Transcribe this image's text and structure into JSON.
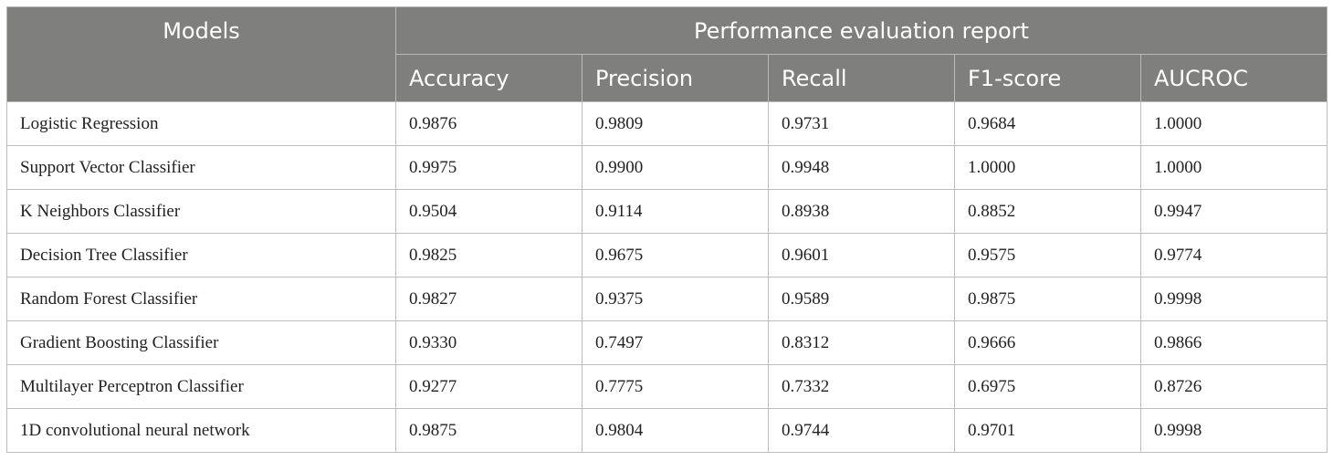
{
  "table": {
    "model_header": "Models",
    "group_header": "Performance evaluation report",
    "metrics": [
      "Accuracy",
      "Precision",
      "Recall",
      "F1-score",
      "AUCROC"
    ],
    "rows": [
      {
        "model": "Logistic Regression",
        "values": [
          "0.9876",
          "0.9809",
          "0.9731",
          "0.9684",
          "1.0000"
        ]
      },
      {
        "model": "Support Vector Classifier",
        "values": [
          "0.9975",
          "0.9900",
          "0.9948",
          "1.0000",
          "1.0000"
        ]
      },
      {
        "model": "K Neighbors Classifier",
        "values": [
          "0.9504",
          "0.9114",
          "0.8938",
          "0.8852",
          "0.9947"
        ]
      },
      {
        "model": "Decision Tree Classifier",
        "values": [
          "0.9825",
          "0.9675",
          "0.9601",
          "0.9575",
          "0.9774"
        ]
      },
      {
        "model": "Random Forest Classifier",
        "values": [
          "0.9827",
          "0.9375",
          "0.9589",
          "0.9875",
          "0.9998"
        ]
      },
      {
        "model": "Gradient Boosting Classifier",
        "values": [
          "0.9330",
          "0.7497",
          "0.8312",
          "0.9666",
          "0.9866"
        ]
      },
      {
        "model": "Multilayer Perceptron Classifier",
        "values": [
          "0.9277",
          "0.7775",
          "0.7332",
          "0.6975",
          "0.8726"
        ]
      },
      {
        "model": "1D convolutional neural network",
        "values": [
          "0.9875",
          "0.9804",
          "0.9744",
          "0.9701",
          "0.9998"
        ]
      }
    ]
  }
}
